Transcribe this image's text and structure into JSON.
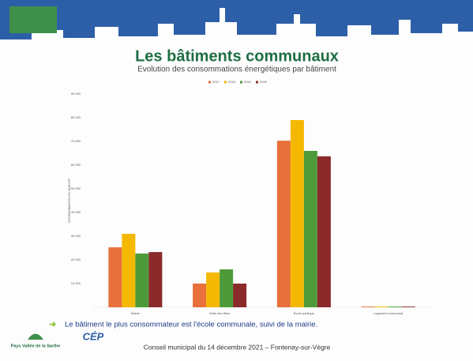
{
  "header": {
    "title": "Les bâtiments communaux",
    "subtitle": "Evolution des consommations énergétiques par bâtiment"
  },
  "chart_data": {
    "type": "bar",
    "y_label": "CONSOMMATION EN KWH EF",
    "categories": [
      "Mairie",
      "Salle des fêtes",
      "École publique",
      "Logement communal"
    ],
    "series": [
      {
        "name": "2017",
        "color": "#e8703a",
        "values": [
          25300,
          10000,
          70300,
          300
        ]
      },
      {
        "name": "2018",
        "color": "#f5b800",
        "values": [
          31000,
          14700,
          79000,
          300
        ]
      },
      {
        "name": "2019",
        "color": "#4e9a3a",
        "values": [
          22700,
          16000,
          66000,
          300
        ]
      },
      {
        "name": "2020",
        "color": "#8b2a2a",
        "values": [
          23300,
          10000,
          63700,
          300
        ]
      }
    ],
    "ylim": [
      0,
      90000
    ],
    "yticks": [
      {
        "value": 10000,
        "label": "10 000"
      },
      {
        "value": 20000,
        "label": "20 000"
      },
      {
        "value": 30000,
        "label": "30 000"
      },
      {
        "value": 40000,
        "label": "40 000"
      },
      {
        "value": 50000,
        "label": "50 000"
      },
      {
        "value": 60000,
        "label": "60 000"
      },
      {
        "value": 70000,
        "label": "70 000"
      },
      {
        "value": 80000,
        "label": "80 000"
      },
      {
        "value": 90000,
        "label": "90 000"
      }
    ],
    "legend": "top"
  },
  "conclusion": "Le bâtiment le plus consommateur est l'école communale, suivi de la mairie.",
  "footer": {
    "text": "Conseil municipal du 14 décembre 2021 – Fontenay-sur-Vègre",
    "logo_left": "Pays Vallée de la Sarthe",
    "logo_right": "CÉP"
  }
}
